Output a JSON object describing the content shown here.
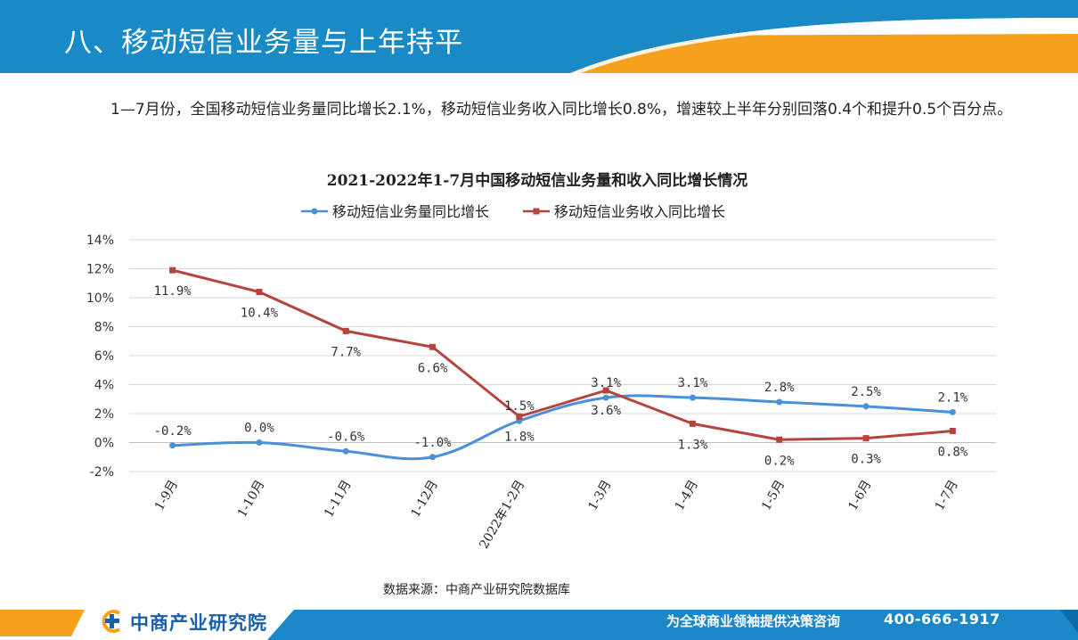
{
  "header": {
    "title": "八、移动短信业务量与上年持平"
  },
  "intro": {
    "text": "1—7月份，全国移动短信业务量同比增长2.1%，移动短信业务收入同比增长0.8%，增速较上半年分别回落0.4个和提升0.5个百分点。"
  },
  "chart_data": {
    "type": "line",
    "title": "2021-2022年1-7月中国移动短信业务量和收入同比增长情况",
    "categories": [
      "1-9月",
      "1-10月",
      "1-11月",
      "1-12月",
      "2022年1-2月",
      "1-3月",
      "1-4月",
      "1-5月",
      "1-6月",
      "1-7月"
    ],
    "series": [
      {
        "name": "移动短信业务量同比增长",
        "values": [
          -0.2,
          0.0,
          -0.6,
          -1.0,
          1.5,
          3.1,
          3.1,
          2.8,
          2.5,
          2.1
        ],
        "labels": [
          "-0.2%",
          "0.0%",
          "-0.6%",
          "-1.0%",
          "1.5%",
          "3.1%",
          "3.1%",
          "2.8%",
          "2.5%",
          "2.1%"
        ],
        "color": "#4a90d9",
        "marker": "circle",
        "smooth": true
      },
      {
        "name": "移动短信业务收入同比增长",
        "values": [
          11.9,
          10.4,
          7.7,
          6.6,
          1.8,
          3.6,
          1.3,
          0.2,
          0.3,
          0.8
        ],
        "labels": [
          "11.9%",
          "10.4%",
          "7.7%",
          "6.6%",
          "1.8%",
          "3.6%",
          "1.3%",
          "0.2%",
          "0.3%",
          "0.8%"
        ],
        "color": "#b5443f",
        "marker": "square",
        "smooth": false
      }
    ],
    "ylim": [
      -2,
      14
    ],
    "yticks": [
      "-2%",
      "0%",
      "2%",
      "4%",
      "6%",
      "8%",
      "10%",
      "12%",
      "14%"
    ],
    "grid": true,
    "legend": "top"
  },
  "source": {
    "text": "数据来源：中商产业研究院数据库"
  },
  "footer": {
    "logo_text": "中商产业研究院",
    "slogan": "为全球商业领袖提供决策咨询",
    "phone": "400-666-1917"
  },
  "colors": {
    "brand_blue": "#1a8ac6",
    "brand_orange": "#f4a11d",
    "footer_blue": "#1b87c9"
  }
}
